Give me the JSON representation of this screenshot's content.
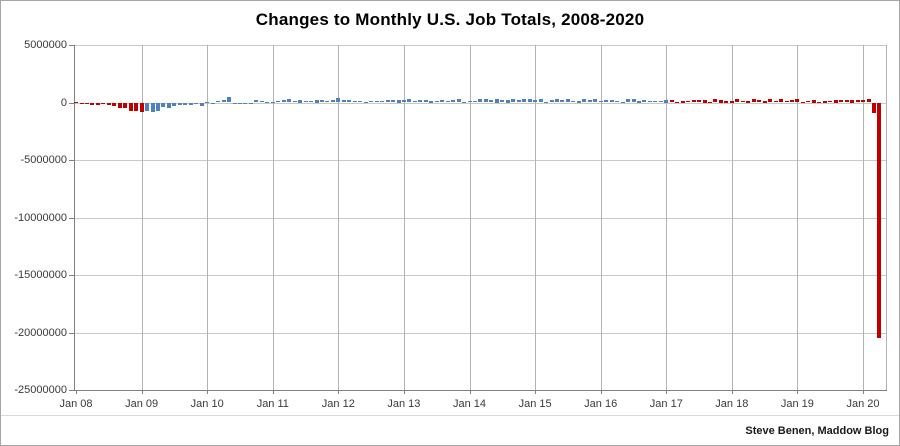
{
  "title": "Changes to Monthly U.S. Job Totals, 2008-2020",
  "attribution": "Steve Benen, Maddow Blog",
  "colors": {
    "bar_red": "#c00000",
    "bar_blue": "#4f81bd",
    "h_gridline": "#c9c9c9",
    "v_gridline": "#b3b3b3",
    "axis": "#808080",
    "axis_label": "#3a3a3a",
    "title": "#000000",
    "background": "#ffffff",
    "border": "#a6a6a6"
  },
  "chart_data": {
    "type": "bar",
    "title": "Changes to Monthly U.S. Job Totals, 2008-2020",
    "xlabel": "",
    "ylabel": "",
    "units": "monthly change in U.S. nonfarm jobs (values stored in thousands)",
    "start_month": "Jan 2008",
    "end_month": "Apr 2020",
    "ylim": [
      -25000000,
      5000000
    ],
    "grid": true,
    "legend": false,
    "y_tick_values": [
      5000000,
      0,
      -5000000,
      -10000000,
      -15000000,
      -20000000,
      -25000000
    ],
    "y_tick_labels": [
      "5000000",
      "0",
      "-5000000",
      "-10000000",
      "-15000000",
      "-20000000",
      "-25000000"
    ],
    "x_tick_labels": [
      "Jan 08",
      "Jan 09",
      "Jan 10",
      "Jan 11",
      "Jan 12",
      "Jan 13",
      "Jan 14",
      "Jan 15",
      "Jan 16",
      "Jan 17",
      "Jan 18",
      "Jan 19",
      "Jan 20"
    ],
    "values_thousands": [
      18,
      -83,
      -78,
      -210,
      -185,
      -165,
      -210,
      -259,
      -452,
      -474,
      -765,
      -697,
      -783,
      -743,
      -800,
      -695,
      -361,
      -482,
      -339,
      -231,
      -199,
      -202,
      -5,
      -283,
      18,
      -50,
      156,
      251,
      516,
      -122,
      -61,
      -42,
      -57,
      241,
      137,
      71,
      70,
      168,
      212,
      322,
      102,
      217,
      106,
      122,
      221,
      183,
      164,
      196,
      360,
      226,
      243,
      96,
      110,
      88,
      160,
      150,
      161,
      225,
      203,
      214,
      197,
      280,
      141,
      203,
      199,
      177,
      149,
      202,
      164,
      237,
      274,
      84,
      144,
      168,
      272,
      310,
      213,
      306,
      232,
      218,
      286,
      200,
      331,
      292,
      201,
      266,
      84,
      251,
      273,
      228,
      277,
      150,
      100,
      268,
      240,
      271,
      126,
      237,
      225,
      153,
      43,
      297,
      291,
      176,
      249,
      124,
      164,
      155,
      216,
      232,
      50,
      175,
      155,
      239,
      189,
      221,
      14,
      271,
      216,
      175,
      176,
      324,
      155,
      175,
      268,
      208,
      178,
      282,
      108,
      277,
      119,
      227,
      312,
      56,
      153,
      216,
      62,
      178,
      166,
      219,
      208,
      185,
      261,
      184,
      225,
      273,
      -870,
      -20500
    ],
    "series_coloring": [
      {
        "period": "Jan 2008 - Jan 2009",
        "from_index": 0,
        "to_index": 12,
        "color": "#c00000"
      },
      {
        "period": "Feb 2009 - Jan 2017",
        "from_index": 13,
        "to_index": 108,
        "color": "#4f81bd"
      },
      {
        "period": "Feb 2017 - Apr 2020",
        "from_index": 109,
        "to_index": 147,
        "color": "#c00000"
      }
    ]
  }
}
